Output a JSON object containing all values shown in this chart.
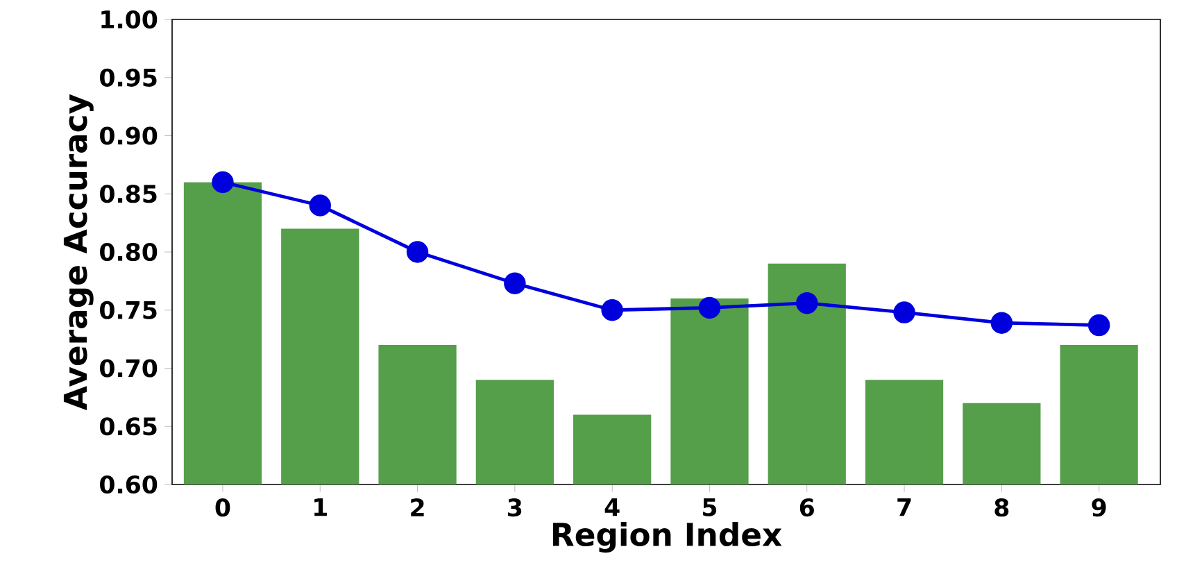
{
  "chart_data": {
    "type": "bar",
    "xlabel": "Region Index",
    "ylabel": "Average Accuracy",
    "categories": [
      "0",
      "1",
      "2",
      "3",
      "4",
      "5",
      "6",
      "7",
      "8",
      "9"
    ],
    "series": [
      {
        "color": "#559e4a",
        "values": [
          0.86,
          0.82,
          0.72,
          0.69,
          0.66,
          0.76,
          0.79,
          0.69,
          0.67,
          0.72
        ]
      },
      {
        "type": "line",
        "color": "#0000dd",
        "values": [
          0.86,
          0.84,
          0.8,
          0.773,
          0.75,
          0.752,
          0.756,
          0.748,
          0.739,
          0.737
        ]
      }
    ],
    "marker": "circle",
    "line_style": "solid",
    "ylim": [
      0.6,
      1.0
    ],
    "yticks": [
      {
        "value": 0.6,
        "label": "0.60"
      },
      {
        "value": 0.65,
        "label": "0.65"
      },
      {
        "value": 0.7,
        "label": "0.70"
      },
      {
        "value": 0.75,
        "label": "0.75"
      },
      {
        "value": 0.8,
        "label": "0.80"
      },
      {
        "value": 0.85,
        "label": "0.85"
      },
      {
        "value": 0.9,
        "label": "0.90"
      },
      {
        "value": 0.95,
        "label": "0.95"
      },
      {
        "value": 1.0,
        "label": "1.00"
      }
    ]
  }
}
